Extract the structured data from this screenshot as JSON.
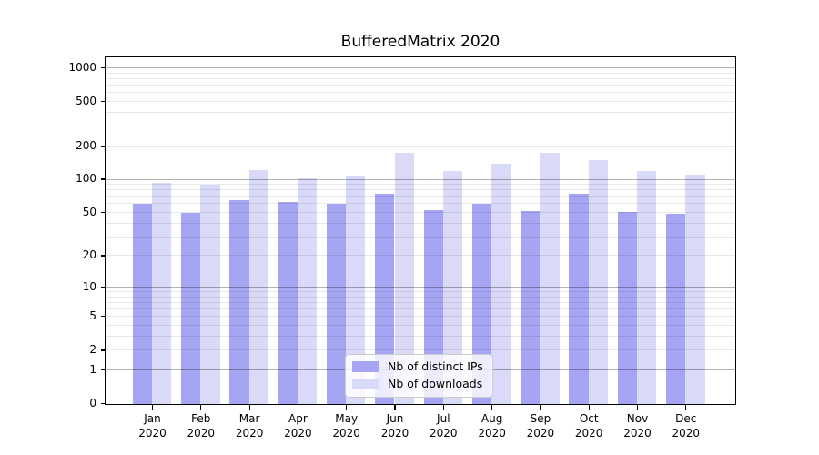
{
  "title": "BufferedMatrix 2020",
  "colors": {
    "distinct_ips_bar": "#a5a5f3",
    "downloads_bar": "#d9d9f8",
    "grid_major": "#b3b3b3",
    "grid_minor": "#e8e8e8",
    "axis": "#000000"
  },
  "y_axis": {
    "tick_values": [
      1000,
      500,
      200,
      100,
      50,
      20,
      10,
      5,
      2,
      1,
      0
    ],
    "tick_labels": [
      "1000",
      "500",
      "200",
      "100",
      "50",
      "20",
      "10",
      "5",
      "2",
      "1",
      "0"
    ],
    "scale": "log10(1+y)",
    "major_grid_values": [
      1,
      10,
      100,
      1000
    ]
  },
  "x_axis": {
    "year_label": "2020"
  },
  "legend": {
    "items": [
      {
        "label": "Nb of distinct IPs",
        "series": "distinct_ips"
      },
      {
        "label": "Nb of downloads",
        "series": "downloads"
      }
    ]
  },
  "chart_data": {
    "type": "bar",
    "title": "BufferedMatrix 2020",
    "categories": [
      "Jan",
      "Feb",
      "Mar",
      "Apr",
      "May",
      "Jun",
      "Jul",
      "Aug",
      "Sep",
      "Oct",
      "Nov",
      "Dec"
    ],
    "year": "2020",
    "series": [
      {
        "name": "Nb of distinct IPs",
        "values": [
          61,
          50,
          65,
          63,
          60,
          74,
          53,
          61,
          52,
          74,
          51,
          49
        ]
      },
      {
        "name": "Nb of downloads",
        "values": [
          94,
          90,
          123,
          103,
          108,
          176,
          119,
          138,
          173,
          149,
          119,
          110
        ]
      }
    ],
    "ylim": [
      0,
      1200
    ],
    "yscale": "log1p",
    "grid": true,
    "legend_position": "bottom-center"
  }
}
